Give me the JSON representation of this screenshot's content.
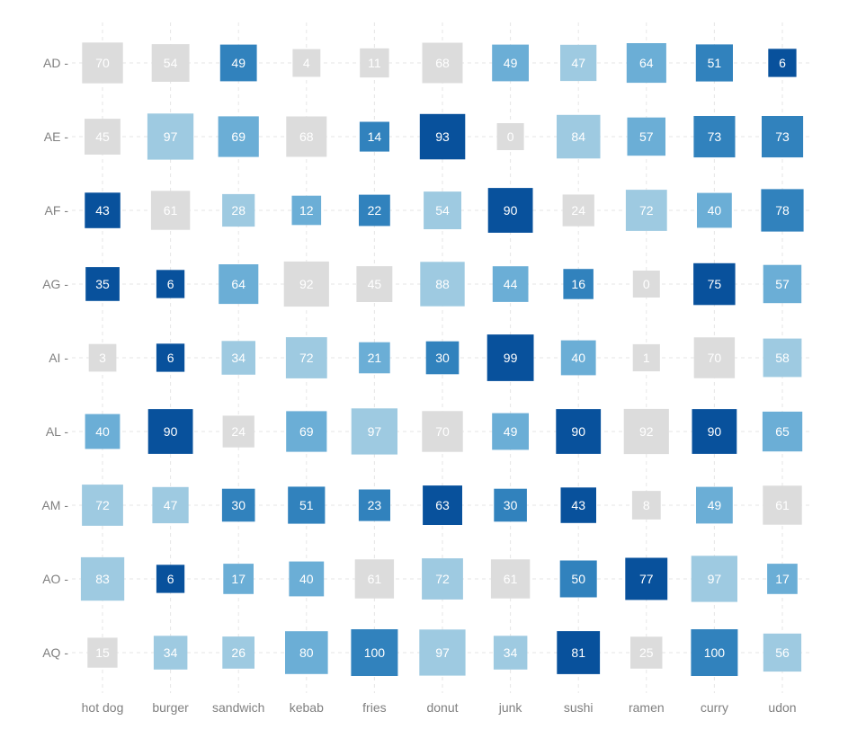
{
  "chart_data": {
    "type": "heatmap",
    "title": "",
    "xlabel": "",
    "ylabel": "",
    "x": [
      "hot dog",
      "burger",
      "sandwich",
      "kebab",
      "fries",
      "donut",
      "junk",
      "sushi",
      "ramen",
      "curry",
      "udon"
    ],
    "y": [
      "AD",
      "AE",
      "AF",
      "AG",
      "AI",
      "AL",
      "AM",
      "AO",
      "AQ"
    ],
    "values": [
      [
        70,
        54,
        49,
        4,
        11,
        68,
        49,
        47,
        64,
        51,
        6
      ],
      [
        45,
        97,
        69,
        68,
        14,
        93,
        0,
        84,
        57,
        73,
        73
      ],
      [
        43,
        61,
        28,
        12,
        22,
        54,
        90,
        24,
        72,
        40,
        78
      ],
      [
        35,
        6,
        64,
        92,
        45,
        88,
        44,
        16,
        0,
        75,
        57
      ],
      [
        3,
        6,
        34,
        72,
        21,
        30,
        99,
        40,
        1,
        70,
        58
      ],
      [
        40,
        90,
        24,
        69,
        97,
        70,
        49,
        90,
        92,
        90,
        65
      ],
      [
        72,
        47,
        30,
        51,
        23,
        63,
        30,
        43,
        8,
        49,
        61
      ],
      [
        83,
        6,
        17,
        40,
        61,
        72,
        61,
        50,
        77,
        97,
        17
      ],
      [
        15,
        34,
        26,
        80,
        100,
        97,
        34,
        81,
        25,
        100,
        56
      ]
    ],
    "color_levels": [
      [
        0,
        0,
        3,
        0,
        0,
        0,
        2,
        1,
        2,
        3,
        4
      ],
      [
        0,
        1,
        2,
        0,
        3,
        4,
        0,
        1,
        2,
        3,
        3
      ],
      [
        4,
        0,
        1,
        2,
        3,
        1,
        4,
        0,
        1,
        2,
        3
      ],
      [
        4,
        4,
        2,
        0,
        0,
        1,
        2,
        3,
        0,
        4,
        2
      ],
      [
        0,
        4,
        1,
        1,
        2,
        3,
        4,
        2,
        0,
        0,
        1
      ],
      [
        2,
        4,
        0,
        2,
        1,
        0,
        2,
        4,
        0,
        4,
        2
      ],
      [
        1,
        1,
        3,
        3,
        3,
        4,
        3,
        4,
        0,
        2,
        0
      ],
      [
        1,
        4,
        2,
        2,
        0,
        1,
        0,
        3,
        4,
        1,
        2
      ],
      [
        0,
        1,
        1,
        2,
        3,
        1,
        1,
        4,
        0,
        3,
        1
      ]
    ],
    "palette": [
      "#dcdcdc",
      "#9ecae1",
      "#6baed6",
      "#3182bd",
      "#08519c"
    ],
    "grid": true
  }
}
